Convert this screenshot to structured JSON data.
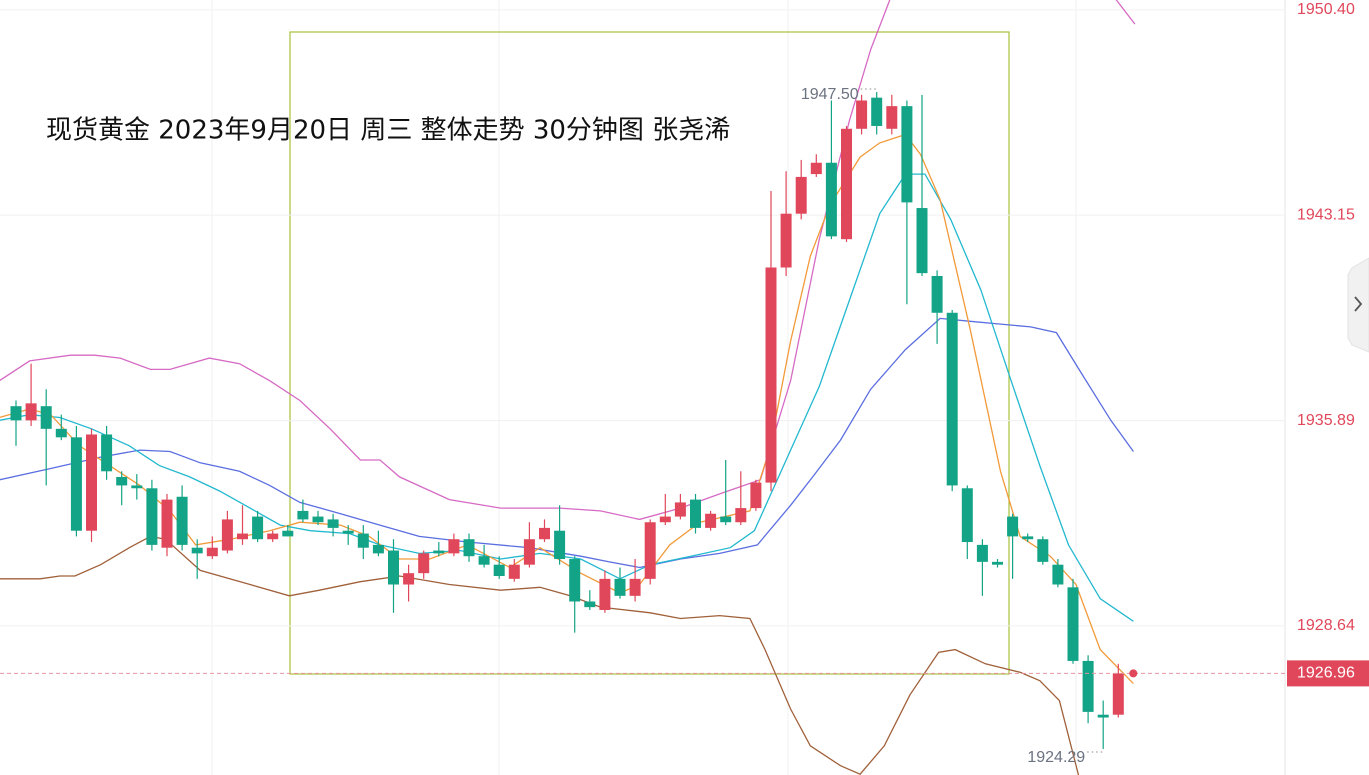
{
  "chart_data": {
    "type": "candlestick",
    "title": "现货黄金 2023年9月20日 周三 整体走势 30分钟图 张尧浠",
    "up_color": "#e0475a",
    "down_color": "#13a386",
    "ylim": [
      1923.37,
      1950.75
    ],
    "yticks": [
      {
        "value": 1950.4,
        "label": "1950.40"
      },
      1943.15,
      1935.89,
      1928.64
    ],
    "grid": true,
    "open": [
      1936.4,
      1935.9,
      1936.4,
      1935.6,
      1935.3,
      1932.0,
      1935.4,
      1933.9,
      1933.6,
      1933.5,
      1931.4,
      1933.2,
      1931.4,
      1931.1,
      1931.3,
      1931.7,
      1932.5,
      1931.7,
      1932.0,
      1932.7,
      1932.5,
      1932.4,
      1932.0,
      1931.9,
      1931.5,
      1931.3,
      1930.1,
      1930.5,
      1931.3,
      1931.2,
      1931.7,
      1931.1,
      1930.8,
      1930.3,
      1930.8,
      1931.7,
      1932.0,
      1931.0,
      1929.5,
      1929.2,
      1930.3,
      1929.7,
      1930.3,
      1932.3,
      1932.5,
      1933.1,
      1932.1,
      1932.5,
      1932.3,
      1932.8,
      1933.7,
      1941.3,
      1943.2,
      1944.6,
      1945.0,
      1942.3,
      1946.2,
      1947.3,
      1946.2,
      1947.0,
      1943.4,
      1941.0,
      1939.7,
      1933.5,
      1931.5,
      1930.9,
      1932.5,
      1931.8,
      1931.7,
      1930.8,
      1930.0,
      1927.4,
      1925.5,
      1925.5
    ],
    "high": [
      1936.6,
      1937.9,
      1937.0,
      1936.1,
      1935.7,
      1935.6,
      1935.7,
      1934.1,
      1934.0,
      1933.8,
      1933.3,
      1933.6,
      1931.7,
      1931.8,
      1932.7,
      1932.9,
      1932.7,
      1932.0,
      1932.2,
      1933.1,
      1932.7,
      1932.6,
      1932.2,
      1932.2,
      1932.0,
      1931.7,
      1930.8,
      1931.3,
      1931.6,
      1931.9,
      1931.9,
      1931.5,
      1931.1,
      1931.0,
      1932.3,
      1932.4,
      1932.9,
      1931.1,
      1929.9,
      1930.6,
      1930.7,
      1931.0,
      1932.4,
      1933.3,
      1933.3,
      1933.3,
      1932.7,
      1934.5,
      1934.1,
      1933.8,
      1944.0,
      1944.7,
      1945.1,
      1945.3,
      1947.2,
      1946.3,
      1947.4,
      1947.5,
      1947.4,
      1947.2,
      1947.4,
      1941.2,
      1939.8,
      1933.6,
      1931.7,
      1931.0,
      1932.6,
      1931.9,
      1931.8,
      1931.0,
      1930.3,
      1927.6,
      1926.0,
      1927.3
    ],
    "low": [
      1935.0,
      1935.7,
      1933.6,
      1935.2,
      1931.8,
      1931.6,
      1933.8,
      1932.9,
      1933.1,
      1931.3,
      1931.1,
      1931.3,
      1930.3,
      1931.0,
      1931.2,
      1931.5,
      1931.6,
      1931.6,
      1931.8,
      1932.3,
      1932.2,
      1931.8,
      1931.5,
      1931.0,
      1931.1,
      1929.1,
      1929.5,
      1930.3,
      1931.1,
      1931.1,
      1930.9,
      1930.7,
      1930.3,
      1930.2,
      1930.7,
      1931.6,
      1930.8,
      1928.4,
      1929.2,
      1929.1,
      1929.6,
      1929.5,
      1930.1,
      1932.2,
      1932.4,
      1931.9,
      1932.0,
      1932.2,
      1932.2,
      1932.7,
      1933.4,
      1941.0,
      1943.0,
      1944.5,
      1942.3,
      1942.2,
      1946.0,
      1946.0,
      1946.0,
      1940.0,
      1941.0,
      1938.6,
      1933.4,
      1931.0,
      1929.7,
      1930.7,
      1930.3,
      1931.6,
      1930.8,
      1930.0,
      1927.3,
      1925.2,
      1924.29,
      1925.4
    ],
    "close": [
      1935.9,
      1936.5,
      1935.6,
      1935.3,
      1932.0,
      1935.4,
      1934.1,
      1933.6,
      1933.5,
      1931.5,
      1933.1,
      1931.5,
      1931.2,
      1931.4,
      1932.4,
      1931.9,
      1931.7,
      1931.9,
      1931.8,
      1932.4,
      1932.3,
      1932.1,
      1931.9,
      1931.4,
      1931.2,
      1930.1,
      1930.5,
      1931.2,
      1931.2,
      1931.7,
      1931.1,
      1930.8,
      1930.4,
      1930.8,
      1931.7,
      1932.1,
      1931.0,
      1929.5,
      1929.3,
      1930.3,
      1929.7,
      1930.3,
      1932.3,
      1932.5,
      1933.0,
      1932.1,
      1932.6,
      1932.3,
      1932.8,
      1933.7,
      1941.3,
      1943.2,
      1944.5,
      1945.0,
      1942.4,
      1946.2,
      1947.2,
      1946.3,
      1947.0,
      1943.6,
      1941.1,
      1939.7,
      1933.6,
      1931.6,
      1930.9,
      1930.8,
      1931.8,
      1931.7,
      1930.9,
      1930.1,
      1927.4,
      1925.6,
      1925.4,
      1926.96
    ],
    "annotations": [
      {
        "label": "1947.50",
        "value": 1947.5,
        "index": 57
      },
      {
        "label": "1924.29",
        "value": 1924.29,
        "index": 72
      }
    ],
    "lines": [
      {
        "color": "#d66ac4",
        "x": [
          -1.1,
          0.9,
          3.6,
          5.2,
          6.9,
          8.9,
          10.2,
          12.8,
          14.8,
          16.8,
          18.8,
          20.8,
          22.8,
          24.1,
          25.4,
          28.7,
          32.1,
          36.0,
          38.7,
          41.3,
          44.0,
          46.6,
          49.3,
          51.3,
          53.2,
          55.2,
          56.6,
          57.9,
          null,
          72.8,
          74.1
        ],
        "values": [
          1937.3,
          1938.0,
          1938.2,
          1938.2,
          1938.1,
          1937.7,
          1937.7,
          1938.1,
          1937.9,
          1937.3,
          1936.6,
          1935.6,
          1934.5,
          1934.5,
          1933.9,
          1933.1,
          1932.8,
          1932.8,
          1932.7,
          1932.4,
          1932.8,
          1933.3,
          1933.8,
          1937.3,
          1942.3,
          1946.5,
          1949.0,
          1950.8,
          null,
          1950.8,
          1949.9
        ]
      },
      {
        "color": "#a0603a",
        "x": [
          -1.1,
          1.6,
          2.9,
          3.9,
          5.6,
          7.5,
          8.9,
          9.9,
          12.2,
          15.5,
          18.1,
          20.1,
          22.8,
          25.4,
          28.7,
          32.1,
          34.7,
          36.7,
          38.7,
          42.0,
          44.0,
          46.6,
          48.6,
          49.6,
          51.3,
          52.6,
          54.6,
          55.9,
          57.5,
          59.2,
          61.1,
          62.2,
          64.2,
          66.5,
          67.8,
          69.1,
          70.4
        ],
        "values": [
          1930.3,
          1930.3,
          1930.4,
          1930.4,
          1930.8,
          1931.4,
          1931.8,
          1931.7,
          1930.6,
          1930.1,
          1929.7,
          1929.9,
          1930.2,
          1930.4,
          1930.1,
          1929.9,
          1930.0,
          1929.7,
          1929.3,
          1929.1,
          1928.9,
          1929.0,
          1928.9,
          1927.8,
          1925.7,
          1924.4,
          1923.7,
          1923.4,
          1924.4,
          1926.2,
          1927.7,
          1927.8,
          1927.3,
          1927.0,
          1926.7,
          1926.0,
          1923.3
        ]
      },
      {
        "color": "#5b6ee0",
        "x": [
          -1.1,
          2.3,
          5.6,
          8.2,
          10.2,
          12.2,
          14.8,
          16.8,
          18.8,
          21.5,
          24.1,
          26.7,
          29.9,
          34.0,
          37.4,
          39.3,
          41.3,
          44.0,
          46.6,
          49.1,
          51.3,
          52.9,
          54.6,
          56.6,
          58.9,
          61.2,
          63.2,
          65.2,
          67.2,
          68.9,
          70.4,
          72.5,
          74.0
        ],
        "values": [
          1933.8,
          1934.2,
          1934.6,
          1934.85,
          1934.8,
          1934.4,
          1934.1,
          1933.6,
          1933.0,
          1932.6,
          1932.2,
          1931.8,
          1931.6,
          1931.4,
          1931.1,
          1930.9,
          1930.7,
          1931.0,
          1931.2,
          1931.5,
          1932.9,
          1934.0,
          1935.2,
          1937.0,
          1938.4,
          1939.5,
          1939.4,
          1939.3,
          1939.2,
          1939.0,
          1937.7,
          1935.9,
          1934.8
        ]
      },
      {
        "color": "#22b8cf",
        "x": [
          -1.1,
          0.9,
          2.9,
          5.0,
          7.5,
          9.5,
          11.5,
          13.5,
          15.5,
          17.5,
          19.5,
          22.1,
          24.1,
          26.7,
          29.4,
          32.1,
          34.7,
          37.4,
          40.0,
          42.0,
          44.7,
          47.3,
          48.9,
          51.3,
          53.2,
          55.2,
          57.2,
          58.9,
          60.2,
          61.9,
          63.9,
          65.9,
          67.8,
          69.7,
          71.8,
          74.0
        ],
        "values": [
          1935.9,
          1936.1,
          1936.0,
          1935.6,
          1935.0,
          1934.3,
          1933.9,
          1933.4,
          1932.8,
          1932.2,
          1932.0,
          1931.9,
          1931.5,
          1931.2,
          1931.3,
          1931.0,
          1931.2,
          1931.0,
          1930.3,
          1930.8,
          1931.1,
          1931.4,
          1932.0,
          1934.85,
          1937.1,
          1940.15,
          1943.2,
          1944.6,
          1944.6,
          1943.0,
          1940.5,
          1937.3,
          1934.3,
          1931.5,
          1929.6,
          1928.8
        ]
      },
      {
        "color": "#f29a3a",
        "x": [
          -1.1,
          0.9,
          2.3,
          4.2,
          6.2,
          8.2,
          10.2,
          11.9,
          14.2,
          16.8,
          18.8,
          21.5,
          23.4,
          25.4,
          27.4,
          29.9,
          32.7,
          34.7,
          37.4,
          40.0,
          41.3,
          43.3,
          45.3,
          48.6,
          49.9,
          51.3,
          52.6,
          53.9,
          55.9,
          57.2,
          58.9,
          59.9,
          61.2,
          63.2,
          65.2,
          66.5,
          68.5,
          70.2,
          71.8,
          74.0
        ],
        "values": [
          1936.0,
          1936.3,
          1936.1,
          1935.0,
          1934.3,
          1933.6,
          1932.7,
          1931.5,
          1931.7,
          1932.0,
          1932.3,
          1932.2,
          1931.8,
          1931.0,
          1931.0,
          1931.5,
          1930.7,
          1931.4,
          1930.5,
          1929.8,
          1930.1,
          1931.5,
          1932.3,
          1932.7,
          1934.85,
          1938.7,
          1941.7,
          1943.5,
          1945.2,
          1945.7,
          1946.0,
          1945.3,
          1943.7,
          1939.1,
          1934.1,
          1931.8,
          1931.1,
          1930.1,
          1927.8,
          1926.6
        ]
      }
    ]
  }
}
